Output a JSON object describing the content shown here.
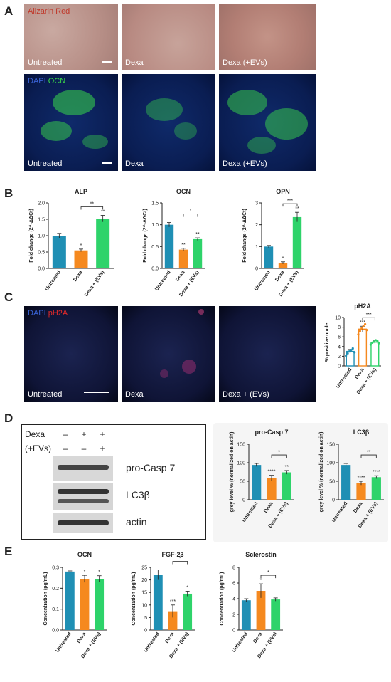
{
  "panels": {
    "A": "A",
    "B": "B",
    "C": "C",
    "D": "D",
    "E": "E"
  },
  "panelA": {
    "top_stain": "Alizarin Red",
    "bottom_stain_dapi": "DAPI",
    "bottom_stain_ocn": "OCN",
    "labels": [
      "Untreated",
      "Dexa",
      "Dexa (+EVs)"
    ],
    "colors": {
      "red_text": "#c0392b",
      "dapi": "#3a63d6",
      "ocn": "#39d84a"
    }
  },
  "panelC": {
    "stain_dapi": "DAPI",
    "stain_ph2a": "pH2A",
    "labels": [
      "Untreated",
      "Dexa",
      "Dexa + (EVs)"
    ]
  },
  "panelD": {
    "row_labels": [
      "Dexa",
      "(+EVs)"
    ],
    "dexa_signs": [
      "–",
      "+",
      "+"
    ],
    "evs_signs": [
      "–",
      "–",
      "+"
    ],
    "bands": [
      "pro-Casp 7",
      "LC3β",
      "actin"
    ]
  },
  "colors": {
    "untreated": "#1f8fb4",
    "dexa": "#f5891f",
    "evs": "#2ed36a"
  },
  "chart_data": [
    {
      "id": "B-ALP",
      "type": "bar",
      "title": "ALP",
      "ylabel": "Fold change (2^-ΔΔCt)",
      "categories": [
        "Untreated",
        "Dexa",
        "Dexa + (EVs)"
      ],
      "values": [
        1.0,
        0.55,
        1.52
      ],
      "errors": [
        0.07,
        0.04,
        0.1
      ],
      "ylim": [
        0,
        2.0
      ],
      "yticks": [
        0,
        0.5,
        1.0,
        1.5,
        2.0
      ],
      "ticklabels": [
        "0.0",
        "0.5",
        "1.0",
        "1.5",
        "2.0"
      ],
      "stars": [
        "",
        "*",
        "**"
      ],
      "bracket": {
        "from": 1,
        "to": 2,
        "label": "**"
      }
    },
    {
      "id": "B-OCN",
      "type": "bar",
      "title": "OCN",
      "ylabel": "Fold change (2^-ΔΔCt)",
      "categories": [
        "Untreated",
        "Dexa",
        "Dexa + (EVs)"
      ],
      "values": [
        1.0,
        0.43,
        0.67
      ],
      "errors": [
        0.05,
        0.03,
        0.03
      ],
      "ylim": [
        0,
        1.5
      ],
      "yticks": [
        0,
        0.5,
        1.0,
        1.5
      ],
      "ticklabels": [
        "0.0",
        "0.5",
        "1.0",
        "1.5"
      ],
      "stars": [
        "",
        "**",
        "**"
      ],
      "bracket": {
        "from": 1,
        "to": 2,
        "label": "°"
      }
    },
    {
      "id": "B-OPN",
      "type": "bar",
      "title": "OPN",
      "ylabel": "Fold change (2^-ΔΔCt)",
      "categories": [
        "Untreated",
        "Dexa",
        "Dexa + (EVs)"
      ],
      "values": [
        1.0,
        0.25,
        2.35
      ],
      "errors": [
        0.05,
        0.05,
        0.22
      ],
      "ylim": [
        0,
        3
      ],
      "yticks": [
        0,
        1,
        2,
        3
      ],
      "ticklabels": [
        "0",
        "1",
        "2",
        "3"
      ],
      "stars": [
        "",
        "*",
        "**"
      ],
      "bracket": {
        "from": 1,
        "to": 2,
        "label": "***"
      }
    },
    {
      "id": "C-pH2A",
      "type": "bar",
      "title": "pH2A",
      "ylabel": "% positive nuclei",
      "categories": [
        "Untreated",
        "Dexa",
        "Dexa + (EVs)"
      ],
      "values": [
        3.0,
        7.6,
        4.9
      ],
      "errors": [
        0.4,
        0.6,
        0.3
      ],
      "ylim": [
        0,
        10
      ],
      "yticks": [
        0,
        2,
        4,
        6,
        8,
        10
      ],
      "ticklabels": [
        "0",
        "2",
        "4",
        "6",
        "8",
        "10"
      ],
      "stars": [
        "",
        "***",
        ""
      ],
      "bracket": {
        "from": 1,
        "to": 2,
        "label": "***"
      },
      "hollow": true,
      "points": [
        [
          2.1,
          2.6,
          3.0,
          3.3,
          3.6,
          2.8
        ],
        [
          6.5,
          7.2,
          7.8,
          8.2,
          8.6,
          7.4
        ],
        [
          4.4,
          4.8,
          5.0,
          5.3,
          5.1,
          4.7
        ]
      ]
    },
    {
      "id": "D-proCasp7",
      "type": "bar",
      "title": "pro-Casp 7",
      "ylabel": "grey level % (normalized on actin)",
      "categories": [
        "Untreated",
        "Dexa",
        "Dexa + (EVs)"
      ],
      "values": [
        94,
        58,
        74
      ],
      "errors": [
        4,
        8,
        5
      ],
      "ylim": [
        0,
        150
      ],
      "yticks": [
        0,
        50,
        100,
        150
      ],
      "ticklabels": [
        "0",
        "50",
        "100",
        "150"
      ],
      "stars": [
        "",
        "****",
        "**"
      ],
      "bracket": {
        "from": 1,
        "to": 2,
        "label": "*"
      }
    },
    {
      "id": "D-LC3b",
      "type": "bar",
      "title": "LC3β",
      "ylabel": "grey level % (normalized on actin)",
      "categories": [
        "Untreated",
        "Dexa",
        "Dexa + (EVs)"
      ],
      "values": [
        94,
        45,
        61
      ],
      "errors": [
        4,
        5,
        4
      ],
      "ylim": [
        0,
        150
      ],
      "yticks": [
        0,
        50,
        100,
        150
      ],
      "ticklabels": [
        "0",
        "50",
        "100",
        "150"
      ],
      "stars": [
        "",
        "****",
        "****"
      ],
      "bracket": {
        "from": 1,
        "to": 2,
        "label": "**"
      }
    },
    {
      "id": "E-OCN",
      "type": "bar",
      "title": "OCN",
      "ylabel": "Concentration (pg/mL)",
      "categories": [
        "Untreated",
        "Dexa",
        "Dexa + (EVs)"
      ],
      "values": [
        0.28,
        0.245,
        0.245
      ],
      "errors": [
        0.003,
        0.017,
        0.015
      ],
      "ylim": [
        0,
        0.3
      ],
      "yticks": [
        0,
        0.1,
        0.2,
        0.3
      ],
      "ticklabels": [
        "0.0",
        "0.1",
        "0.2",
        "0.3"
      ],
      "stars": [
        "",
        "*",
        "*"
      ],
      "bracket": null
    },
    {
      "id": "E-FGF23",
      "type": "bar",
      "title": "FGF-23",
      "ylabel": "Concentration (pg/mL)",
      "categories": [
        "Untreated",
        "Dexa",
        "Dexa + (EVs)"
      ],
      "values": [
        22,
        7.5,
        14.5
      ],
      "errors": [
        2,
        2.5,
        1
      ],
      "ylim": [
        0,
        25
      ],
      "yticks": [
        0,
        5,
        10,
        15,
        20,
        25
      ],
      "ticklabels": [
        "0",
        "5",
        "10",
        "15",
        "20",
        "25"
      ],
      "stars": [
        "",
        "***",
        "*"
      ],
      "bracket": {
        "from": 1,
        "to": 2,
        "label": "*"
      }
    },
    {
      "id": "E-Sclerostin",
      "type": "bar",
      "title": "Sclerostin",
      "ylabel": "Concentration (pg/mL)",
      "categories": [
        "Untreated",
        "Dexa",
        "Dexa + (EVs)"
      ],
      "values": [
        3.8,
        5.0,
        3.9
      ],
      "errors": [
        0.2,
        0.9,
        0.2
      ],
      "ylim": [
        0,
        8
      ],
      "yticks": [
        0,
        2,
        4,
        6,
        8
      ],
      "ticklabels": [
        "0",
        "2",
        "4",
        "6",
        "8"
      ],
      "stars": [
        "",
        "*",
        ""
      ],
      "bracket": {
        "from": 1,
        "to": 2,
        "label": "*"
      }
    }
  ]
}
